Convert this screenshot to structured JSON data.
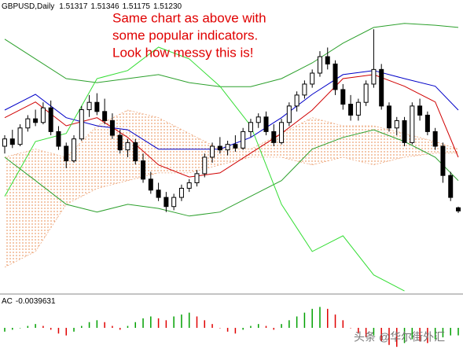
{
  "chart_data": {
    "type": "candlestick",
    "title": "GBPUSD,Daily",
    "last_bar_labels": [
      "1.51317",
      "1.51346",
      "1.51175",
      "1.51230"
    ],
    "annotation": [
      "Same chart as above with",
      "some popular indicators.",
      "Look how messy this is!"
    ],
    "annotation_color": "#e00000",
    "watermark": "头条 @华尔街外汇",
    "up_color": "#ffffff",
    "down_color": "#000000",
    "ylim": [
      1.49,
      1.57
    ],
    "open": [
      1.53,
      1.532,
      1.5305,
      1.535,
      1.5375,
      1.5365,
      1.5405,
      1.534,
      1.53,
      1.526,
      1.532,
      1.54,
      1.542,
      1.5395,
      1.537,
      1.533,
      1.529,
      1.531,
      1.526,
      1.521,
      1.518,
      1.516,
      1.5135,
      1.516,
      1.5185,
      1.52,
      1.5225,
      1.527,
      1.53,
      1.529,
      1.5305,
      1.5295,
      1.534,
      1.5365,
      1.538,
      1.534,
      1.531,
      1.5365,
      1.541,
      1.544,
      1.547,
      1.55,
      1.5545,
      1.5525,
      1.5455,
      1.5415,
      1.5385,
      1.542,
      1.547,
      1.551,
      1.541,
      1.535,
      1.537,
      1.531,
      1.541,
      1.5385,
      1.534,
      1.53,
      1.522,
      1.51317
    ],
    "high": [
      1.533,
      1.5345,
      1.536,
      1.5385,
      1.54,
      1.542,
      1.5425,
      1.5355,
      1.531,
      1.533,
      1.541,
      1.544,
      1.5445,
      1.543,
      1.539,
      1.5345,
      1.532,
      1.532,
      1.528,
      1.523,
      1.52,
      1.5175,
      1.517,
      1.5195,
      1.521,
      1.5235,
      1.528,
      1.531,
      1.5325,
      1.5315,
      1.533,
      1.535,
      1.5375,
      1.539,
      1.5395,
      1.536,
      1.5375,
      1.542,
      1.545,
      1.548,
      1.551,
      1.556,
      1.557,
      1.5535,
      1.547,
      1.544,
      1.543,
      1.548,
      1.562,
      1.5525,
      1.542,
      1.538,
      1.538,
      1.542,
      1.543,
      1.5395,
      1.535,
      1.531,
      1.523,
      1.51346
    ],
    "low": [
      1.528,
      1.5295,
      1.53,
      1.534,
      1.5355,
      1.536,
      1.533,
      1.529,
      1.524,
      1.5255,
      1.5315,
      1.538,
      1.5385,
      1.536,
      1.532,
      1.528,
      1.527,
      1.525,
      1.52,
      1.517,
      1.515,
      1.512,
      1.5125,
      1.515,
      1.5175,
      1.519,
      1.5215,
      1.5255,
      1.528,
      1.5275,
      1.5285,
      1.529,
      1.5325,
      1.535,
      1.533,
      1.53,
      1.5305,
      1.5355,
      1.5395,
      1.543,
      1.546,
      1.549,
      1.551,
      1.544,
      1.54,
      1.537,
      1.537,
      1.541,
      1.546,
      1.54,
      1.534,
      1.533,
      1.53,
      1.5305,
      1.537,
      1.533,
      1.529,
      1.52,
      1.515,
      1.51175
    ],
    "close": [
      1.532,
      1.5305,
      1.535,
      1.5375,
      1.5365,
      1.5405,
      1.534,
      1.53,
      1.526,
      1.532,
      1.54,
      1.542,
      1.5395,
      1.537,
      1.533,
      1.529,
      1.531,
      1.526,
      1.521,
      1.518,
      1.516,
      1.5135,
      1.516,
      1.5185,
      1.52,
      1.5225,
      1.527,
      1.53,
      1.529,
      1.5305,
      1.5295,
      1.534,
      1.5365,
      1.538,
      1.534,
      1.531,
      1.5365,
      1.541,
      1.544,
      1.547,
      1.55,
      1.5545,
      1.5525,
      1.5455,
      1.5415,
      1.5385,
      1.542,
      1.547,
      1.551,
      1.541,
      1.535,
      1.537,
      1.531,
      1.541,
      1.5385,
      1.534,
      1.53,
      1.522,
      1.516,
      1.5123
    ],
    "line_x": [
      0,
      4,
      8,
      12,
      16,
      20,
      24,
      28,
      32,
      36,
      40,
      44,
      48,
      52,
      56,
      59
    ],
    "cloud": {
      "color": "#e8905a",
      "upper": [
        1.527,
        1.5292,
        1.527,
        1.5356,
        1.5399,
        1.5378,
        1.5335,
        1.5292,
        1.5292,
        1.5335,
        1.5378,
        1.5356,
        1.5356,
        1.5335,
        1.5313,
        1.5292
      ],
      "lower": [
        1.4969,
        1.5012,
        1.5141,
        1.5184,
        1.5206,
        1.5227,
        1.5227,
        1.5249,
        1.527,
        1.527,
        1.5249,
        1.527,
        1.5249,
        1.527,
        1.5281,
        1.5281
      ]
    },
    "series": [
      {
        "color": "#2ca02c",
        "values": [
          1.5593,
          1.5539,
          1.5485,
          1.5474,
          1.5485,
          1.5496,
          1.5474,
          1.5463,
          1.5463,
          1.5485,
          1.5528,
          1.5582,
          1.5625,
          1.5636,
          1.5631,
          1.5625
        ]
      },
      {
        "color": "#2ca02c",
        "values": [
          1.527,
          1.5206,
          1.5141,
          1.512,
          1.5141,
          1.513,
          1.5109,
          1.512,
          1.5163,
          1.5206,
          1.5292,
          1.5324,
          1.5345,
          1.5313,
          1.527,
          1.5206
        ]
      },
      {
        "color": "#d00000",
        "values": [
          1.5378,
          1.5421,
          1.5356,
          1.5378,
          1.5324,
          1.5249,
          1.5216,
          1.5227,
          1.5281,
          1.5335,
          1.5399,
          1.5485,
          1.5496,
          1.5464,
          1.5421,
          1.527
        ]
      },
      {
        "color": "#0000c8",
        "values": [
          1.5399,
          1.5442,
          1.5378,
          1.5356,
          1.5345,
          1.5292,
          1.5292,
          1.5292,
          1.5324,
          1.5378,
          1.5442,
          1.5496,
          1.5507,
          1.5485,
          1.5464,
          1.5399
        ]
      },
      {
        "color": "#33dd33",
        "values": [
          1.5163,
          1.5313,
          1.5335,
          1.5485,
          1.5507,
          1.5571,
          1.5539,
          1.5464,
          1.5356,
          1.5141,
          1.5012,
          1.5055,
          1.4948,
          1.4904,
          null,
          null
        ]
      }
    ],
    "indicator": {
      "type": "bar",
      "label": "AC",
      "ylim": [
        -0.012,
        0.012
      ],
      "up_color": "#00a000",
      "down_color": "#e00000",
      "values": [
        -0.002,
        -0.001,
        0.0,
        0.001,
        0.002,
        0.001,
        -0.001,
        -0.003,
        -0.004,
        -0.002,
        0.001,
        0.003,
        0.004,
        0.003,
        0.001,
        -0.001,
        0.001,
        0.003,
        0.005,
        0.006,
        0.005,
        0.004,
        0.006,
        0.007,
        0.008,
        0.006,
        0.004,
        0.002,
        0.0,
        -0.002,
        -0.003,
        -0.001,
        0.001,
        0.002,
        0.001,
        -0.001,
        0.002,
        0.004,
        0.006,
        0.008,
        0.01,
        0.011,
        0.01,
        0.007,
        0.004,
        0.0,
        -0.003,
        -0.005,
        -0.004,
        -0.007,
        -0.009,
        -0.01,
        -0.008,
        -0.006,
        -0.007,
        -0.008,
        -0.006,
        -0.005,
        -0.004,
        -0.0039631
      ]
    }
  }
}
